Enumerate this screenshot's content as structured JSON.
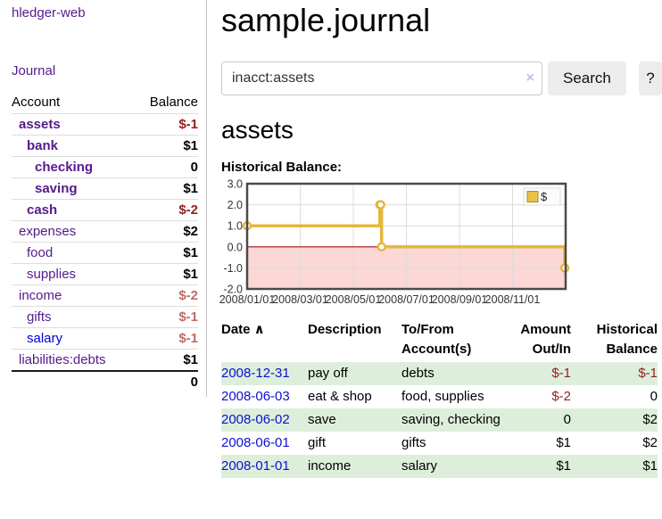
{
  "colors": {
    "link_visited": "#551a8b",
    "link_unvisited": "#0000d6",
    "negative_strong": "#941f1f",
    "negative_soft": "#c06a6a",
    "stripe_green": "#ddefdb",
    "chart_line": "#e3b83d",
    "chart_negative_fill": "#fbd7d5",
    "chart_zero_line": "#991111"
  },
  "brand": "hledger-web",
  "sidebar": {
    "journal_link": "Journal",
    "accounts_table": {
      "headers": {
        "account": "Account",
        "balance": "Balance"
      },
      "rows": [
        {
          "name": "assets",
          "depth": 1,
          "match": true,
          "balance": "$-1"
        },
        {
          "name": "bank",
          "depth": 2,
          "match": true,
          "balance": "$1"
        },
        {
          "name": "checking",
          "depth": 3,
          "match": true,
          "balance": "0"
        },
        {
          "name": "saving",
          "depth": 3,
          "match": true,
          "balance": "$1"
        },
        {
          "name": "cash",
          "depth": 2,
          "match": true,
          "balance": "$-2"
        },
        {
          "name": "expenses",
          "depth": 1,
          "match": false,
          "balance": "$2"
        },
        {
          "name": "food",
          "depth": 2,
          "match": false,
          "balance": "$1"
        },
        {
          "name": "supplies",
          "depth": 2,
          "match": false,
          "balance": "$1"
        },
        {
          "name": "income",
          "depth": 1,
          "match": false,
          "balance": "$-2"
        },
        {
          "name": "gifts",
          "depth": 2,
          "match": false,
          "balance": "$-1"
        },
        {
          "name": "salary",
          "depth": 2,
          "match": false,
          "balance": "$-1",
          "unvisited": true
        },
        {
          "name": "liabilities:debts",
          "depth": 1,
          "match": false,
          "balance": "$1"
        }
      ],
      "total": "0"
    }
  },
  "header": {
    "title": "sample.journal"
  },
  "search": {
    "value": "inacct:assets",
    "clear_icon": "×",
    "button_label": "Search",
    "help_label": "?"
  },
  "account_page": {
    "heading": "assets",
    "chart_title": "Historical Balance:"
  },
  "chart_data": {
    "type": "line",
    "step": true,
    "title": "Historical Balance:",
    "ylim": [
      -2,
      3
    ],
    "y_ticks": [
      3.0,
      2.0,
      1.0,
      0.0,
      -1.0,
      -2.0
    ],
    "x_ticks": [
      "2008/01/01",
      "2008/03/01",
      "2008/05/01",
      "2008/07/01",
      "2008/09/01",
      "2008/11/01"
    ],
    "x_range": [
      "2008-01-01",
      "2009-01-01"
    ],
    "grid": true,
    "legend_position": "top-right",
    "series": [
      {
        "name": "$",
        "points": [
          [
            "2008-01-01",
            1
          ],
          [
            "2008-06-01",
            2
          ],
          [
            "2008-06-02",
            2
          ],
          [
            "2008-06-03",
            0
          ],
          [
            "2008-12-31",
            -1
          ]
        ]
      }
    ]
  },
  "register": {
    "sort_icon": "∧",
    "headers": [
      {
        "line1": "Date",
        "line2": "",
        "align": "left",
        "sort": true
      },
      {
        "line1": "Description",
        "line2": "",
        "align": "left"
      },
      {
        "line1": "To/From",
        "line2": "Account(s)",
        "align": "left"
      },
      {
        "line1": "Amount",
        "line2": "Out/In",
        "align": "right"
      },
      {
        "line1": "Historical",
        "line2": "Balance",
        "align": "right"
      }
    ],
    "rows": [
      {
        "date": "2008-12-31",
        "description": "pay off",
        "accounts": "debts",
        "amount": "$-1",
        "balance": "$-1"
      },
      {
        "date": "2008-06-03",
        "description": "eat & shop",
        "accounts": "food, supplies",
        "amount": "$-2",
        "balance": "0"
      },
      {
        "date": "2008-06-02",
        "description": "save",
        "accounts": "saving, checking",
        "amount": "0",
        "balance": "$2"
      },
      {
        "date": "2008-06-01",
        "description": "gift",
        "accounts": "gifts",
        "amount": "$1",
        "balance": "$2"
      },
      {
        "date": "2008-01-01",
        "description": "income",
        "accounts": "salary",
        "amount": "$1",
        "balance": "$1"
      }
    ]
  }
}
